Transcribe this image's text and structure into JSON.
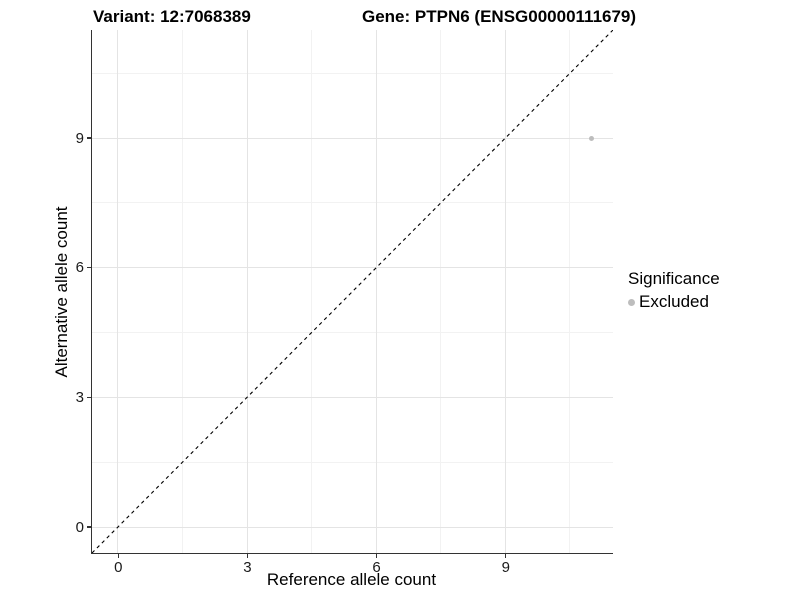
{
  "header": {
    "variant_title": "Variant: 12:7068389",
    "gene_title": "Gene: PTPN6 (ENSG00000111679)"
  },
  "legend": {
    "title": "Significance",
    "items": [
      {
        "label": "Excluded",
        "color": "#bdbdbd"
      }
    ]
  },
  "chart_data": {
    "type": "scatter",
    "title": "Variant: 12:7068389   Gene: PTPN6 (ENSG00000111679)",
    "xlabel": "Reference allele count",
    "ylabel": "Alternative allele count",
    "xlim": [
      -0.6,
      11.5
    ],
    "ylim": [
      -0.6,
      11.5
    ],
    "xticks": [
      0,
      3,
      6,
      9
    ],
    "yticks": [
      0,
      3,
      6,
      9
    ],
    "x_minor_ticks": [
      1.5,
      4.5,
      7.5,
      10.5
    ],
    "y_minor_ticks": [
      1.5,
      4.5,
      7.5,
      10.5
    ],
    "grid": true,
    "legend_position": "right",
    "series": [
      {
        "name": "Excluded",
        "color": "#bdbdbd",
        "points": [
          {
            "x": 11,
            "y": 9
          }
        ]
      }
    ],
    "reference_line": {
      "type": "identity",
      "label": "y = x",
      "style": "dashed",
      "color": "#000000"
    }
  },
  "style_colors": {
    "axis_line": "#333333",
    "grid_major": "#e4e4e4",
    "grid_minor": "#f2f2f2",
    "point_gray": "#bdbdbd"
  }
}
